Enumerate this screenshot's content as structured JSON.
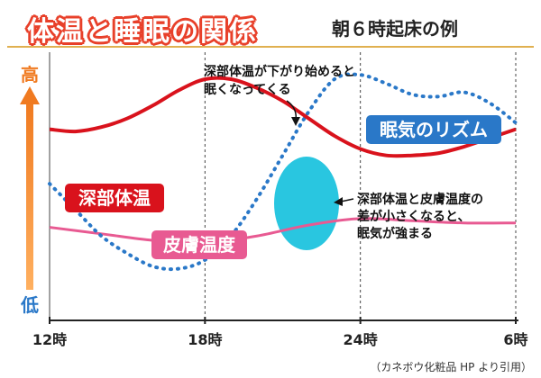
{
  "title": "体温と睡眠の関係",
  "subtitle": "朝６時起床の例",
  "source": "（カネボウ化粧品 HP より引用）",
  "colors": {
    "core": "#d9121c",
    "skin": "#e85a92",
    "sleep": "#2a78c8",
    "arrow": "#f07a20",
    "ellipse": "#29c6e0"
  },
  "chart_data": {
    "type": "line",
    "x_ticks": [
      "12時",
      "18時",
      "24時",
      "6時"
    ],
    "y_axis": {
      "high_label": "高",
      "low_label": "低"
    },
    "series": [
      {
        "name": "深部体温",
        "x": [
          0,
          1,
          2,
          3,
          4,
          5,
          6,
          7,
          8,
          9,
          10,
          11,
          12,
          13,
          14,
          15,
          16,
          17,
          18
        ],
        "y": [
          0.77,
          0.76,
          0.78,
          0.82,
          0.88,
          0.95,
          1.0,
          1.0,
          0.96,
          0.9,
          0.82,
          0.74,
          0.68,
          0.65,
          0.65,
          0.66,
          0.69,
          0.73,
          0.77
        ]
      },
      {
        "name": "皮膚温度",
        "x": [
          0,
          2,
          4,
          6,
          8,
          10,
          12,
          14,
          16,
          18
        ],
        "y": [
          0.32,
          0.29,
          0.26,
          0.25,
          0.28,
          0.33,
          0.36,
          0.35,
          0.34,
          0.34
        ]
      },
      {
        "name": "眠気のリズム",
        "x": [
          0,
          1,
          2,
          3,
          4,
          5,
          6,
          7,
          8,
          9,
          10,
          11,
          12,
          13,
          14,
          15,
          16,
          17,
          18
        ],
        "y": [
          0.52,
          0.4,
          0.28,
          0.2,
          0.14,
          0.13,
          0.17,
          0.28,
          0.45,
          0.65,
          0.85,
          1.0,
          1.02,
          0.98,
          0.93,
          0.92,
          0.94,
          0.89,
          0.8
        ]
      }
    ],
    "annotations": {
      "core_note": [
        "深部体温が下がり始めると",
        "眠くなってくる"
      ],
      "diff_note": [
        "深部体温と皮膚温度の",
        "差が小さくなると、",
        "眠気が強まる"
      ]
    }
  }
}
